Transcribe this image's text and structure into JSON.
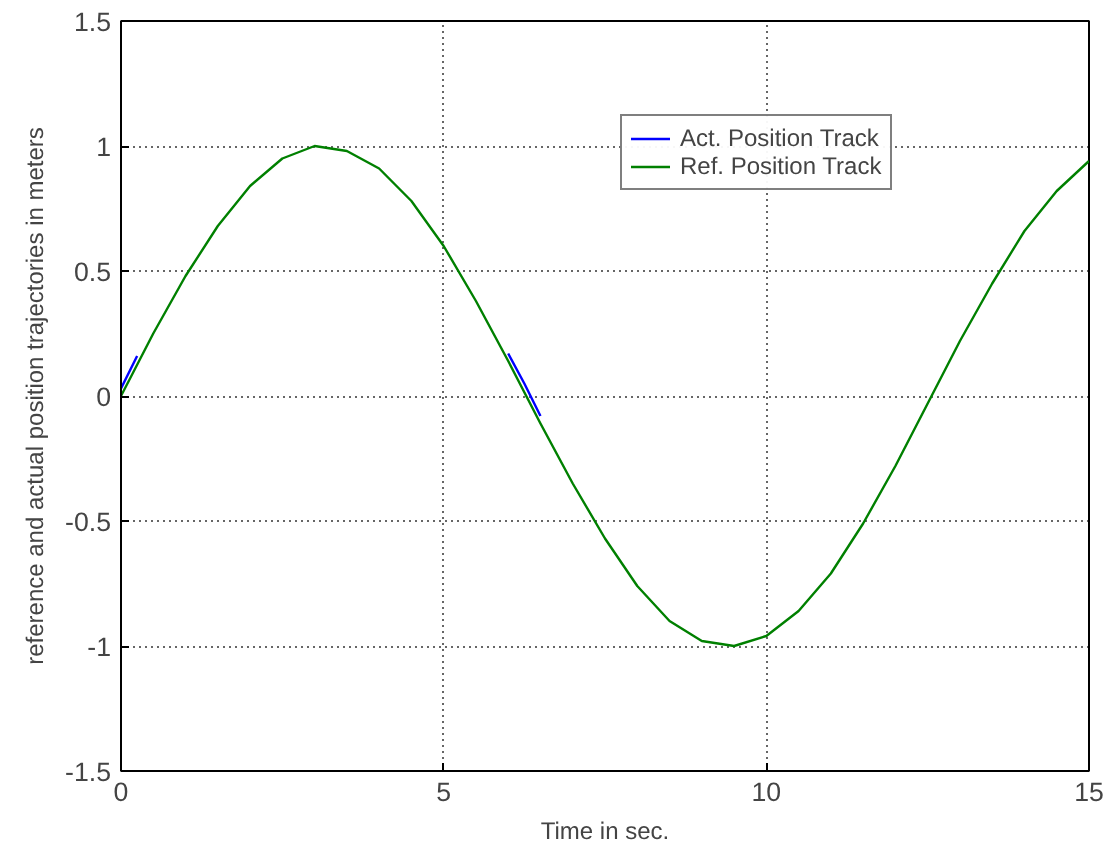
{
  "chart_data": {
    "type": "line",
    "xlabel": "Time in sec.",
    "ylabel": "reference and actual position trajectories in meters",
    "x": [
      0,
      0.5,
      1,
      1.5,
      2,
      2.5,
      3,
      3.5,
      4,
      4.5,
      5,
      5.5,
      6,
      6.5,
      7,
      7.5,
      8,
      8.5,
      9,
      9.5,
      10,
      10.5,
      11,
      11.5,
      12,
      12.5,
      13,
      13.5,
      14,
      14.5,
      15
    ],
    "series": [
      {
        "name": "Act. Position Track",
        "color": "#0000ff",
        "x": [
          0,
          0.25,
          3,
          6,
          6.25,
          6.5
        ],
        "values": [
          0.03,
          0.16,
          null,
          0.17,
          0.05,
          -0.08
        ]
      },
      {
        "name": "Ref. Position Track",
        "color": "#008000",
        "values": [
          0,
          0.25,
          0.48,
          0.68,
          0.84,
          0.95,
          1.0,
          0.98,
          0.91,
          0.78,
          0.6,
          0.38,
          0.14,
          -0.11,
          -0.35,
          -0.57,
          -0.76,
          -0.9,
          -0.98,
          -1.0,
          -0.96,
          -0.86,
          -0.71,
          -0.51,
          -0.28,
          -0.03,
          0.22,
          0.45,
          0.66,
          0.82,
          0.94
        ]
      }
    ],
    "xlim": [
      0,
      15
    ],
    "xticks": [
      0,
      5,
      10,
      15
    ],
    "ylim": [
      -1.5,
      1.5
    ],
    "yticks": [
      -1.5,
      -1,
      -0.5,
      0,
      0.5,
      1,
      1.5
    ],
    "grid": true,
    "legend": "top",
    "line_style": "solid",
    "marker": "none"
  }
}
